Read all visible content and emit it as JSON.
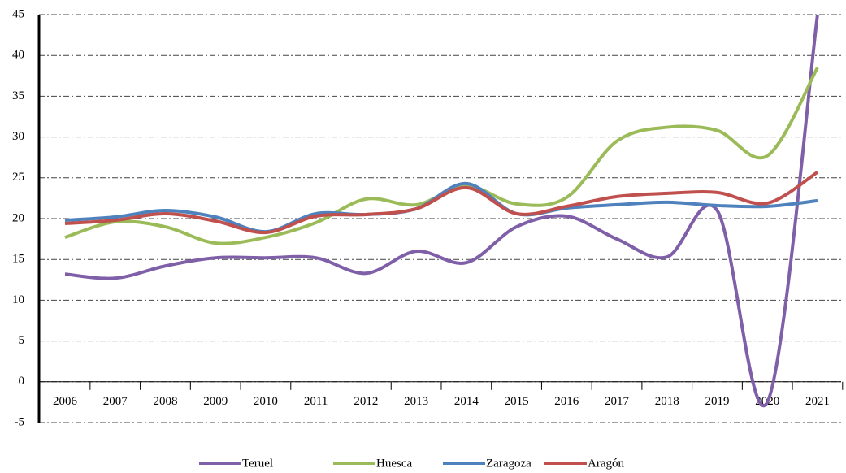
{
  "chart_data": {
    "type": "line",
    "categories": [
      "2006",
      "2007",
      "2008",
      "2009",
      "2010",
      "2011",
      "2012",
      "2013",
      "2014",
      "2015",
      "2016",
      "2017",
      "2018",
      "2019",
      "2020",
      "2021"
    ],
    "series": [
      {
        "name": "Teruel",
        "color": "#7f5fa8",
        "values": [
          13.2,
          12.7,
          14.2,
          15.2,
          15.2,
          15.2,
          13.3,
          16.0,
          14.6,
          19.0,
          20.3,
          17.5,
          15.3,
          21.0,
          -2.5,
          45
        ]
      },
      {
        "name": "Huesca",
        "color": "#9bbb59",
        "values": [
          17.7,
          19.6,
          19.0,
          17.0,
          17.7,
          19.5,
          22.4,
          21.7,
          24.0,
          21.8,
          22.6,
          29.5,
          31.2,
          30.8,
          27.7,
          38.5
        ]
      },
      {
        "name": "Zaragoza",
        "color": "#4f81bd",
        "values": [
          19.8,
          20.2,
          21.0,
          20.2,
          18.4,
          20.6,
          20.5,
          21.2,
          24.3,
          20.6,
          21.3,
          21.7,
          22.0,
          21.6,
          21.5,
          22.2
        ]
      },
      {
        "name": "Aragón",
        "color": "#c0504d",
        "values": [
          19.4,
          19.8,
          20.6,
          19.7,
          18.3,
          20.3,
          20.5,
          21.2,
          23.8,
          20.6,
          21.5,
          22.7,
          23.1,
          23.2,
          21.9,
          25.7
        ]
      }
    ],
    "ylim": [
      -5,
      45
    ],
    "yticks": [
      -5,
      0,
      5,
      10,
      15,
      20,
      25,
      30,
      35,
      40,
      45
    ],
    "grid": true,
    "smooth": true,
    "legend": "bottom"
  }
}
